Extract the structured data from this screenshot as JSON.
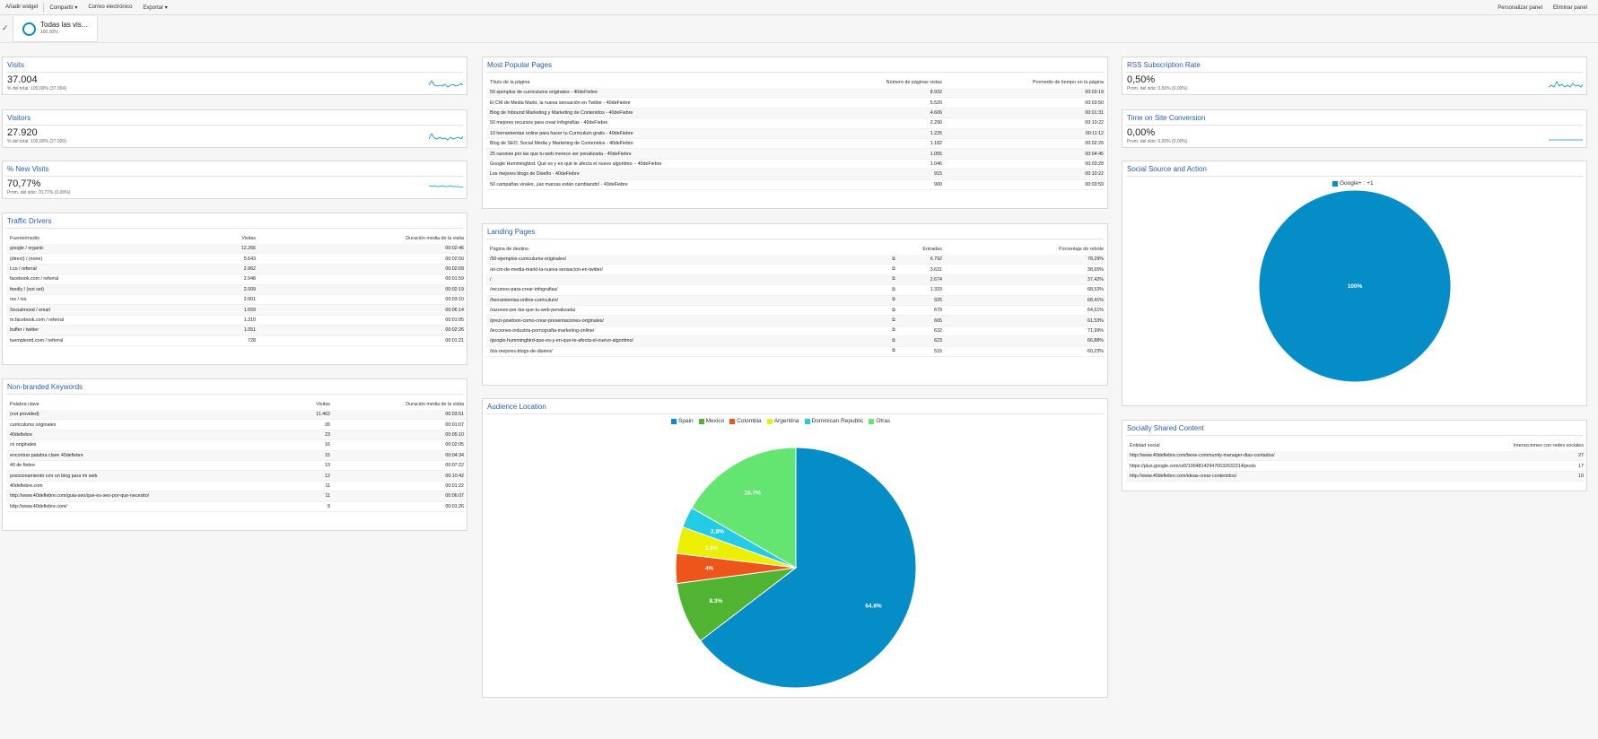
{
  "toolbar": {
    "add_widget": "Añadir widget",
    "share": "Compartir",
    "email": "Correo electrónico",
    "export": "Exportar",
    "customize": "Personalizar panel",
    "delete": "Eliminar panel"
  },
  "segment": {
    "name": "Todas las vis...",
    "pct": "100,00%"
  },
  "visits": {
    "title": "Visits",
    "value": "37.004",
    "sub": "% del total: 100,00% (37.004)"
  },
  "visitors": {
    "title": "Visitors",
    "value": "27.920",
    "sub": "% del total: 100,00% (27.920)"
  },
  "new_visits": {
    "title": "% New Visits",
    "value": "70,77%",
    "sub": "Prom. del sitio: 70,77% (0,00%)"
  },
  "rss": {
    "title": "RSS Subscription Rate",
    "value": "0,50%",
    "sub": "Prom. del sitio: 0,50% (0,00%)"
  },
  "time_conv": {
    "title": "Time on Site Conversion",
    "value": "0,00%",
    "sub": "Prom. del sitio: 0,00% (0,00%)"
  },
  "traffic": {
    "title": "Traffic Drivers",
    "headers": [
      "Fuente/medio",
      "Visitas",
      "Duración media de la visita"
    ],
    "rows": [
      [
        "google / organic",
        "12.266",
        "00:02:46"
      ],
      [
        "(direct) / (none)",
        "5.643",
        "00:02:50"
      ],
      [
        "t.co / referral",
        "2.962",
        "00:02:09"
      ],
      [
        "facebook.com / referral",
        "2.948",
        "00:01:59"
      ],
      [
        "feedly / (not set)",
        "2.009",
        "00:02:19"
      ],
      [
        "rss / rss",
        "2.001",
        "00:03:10"
      ],
      [
        "Socialmood / email",
        "1.559",
        "00:06:14"
      ],
      [
        "m.facebook.com / referral",
        "1.310",
        "00:01:05"
      ],
      [
        "buffer / twitter",
        "1.051",
        "00:02:26"
      ],
      [
        "tuempleord.com / referral",
        "728",
        "00:01:21"
      ]
    ]
  },
  "keywords": {
    "title": "Non-branded Keywords",
    "headers": [
      "Palabra clave",
      "Visitas",
      "Duración media de la visita"
    ],
    "rows": [
      [
        "(not provided)",
        "11.462",
        "00:03:51"
      ],
      [
        "curriculums originales",
        "26",
        "00:01:07"
      ],
      [
        "40defiebre",
        "23",
        "00:05:10"
      ],
      [
        "cv originales",
        "16",
        "00:02:05"
      ],
      [
        "encontrar palabra clave 40defiebre",
        "15",
        "00:04:34"
      ],
      [
        "40 de fiebre",
        "13",
        "00:07:22"
      ],
      [
        "posicionamiento con un blog para mi web",
        "12",
        "00:10:42"
      ],
      [
        "40defiebre.com",
        "11",
        "00:01:22"
      ],
      [
        "http://www.40defiebre.com/guia-seo/que-es-seo-por-que-necesito/",
        "11",
        "00:06:07"
      ],
      [
        "http://www.40defiebre.com/",
        "9",
        "00:01:26"
      ]
    ]
  },
  "popular": {
    "title": "Most Popular Pages",
    "headers": [
      "Título de la página",
      "Número de páginas vistas",
      "Promedio de tiempo en la página"
    ],
    "rows": [
      [
        "50 ejemplos de curriculums originales - 40deFiebre",
        "8.932",
        "00:03:19"
      ],
      [
        "El CM de Media Markt, la nueva sensación en Twitter - 40deFiebre",
        "5.520",
        "00:03:50"
      ],
      [
        "Blog de Inbound Marketing y Marketing de Contenidos - 40deFiebre",
        "4.606",
        "00:01:31"
      ],
      [
        "50 mejores recursos para crear infografías - 40deFiebre",
        "2.290",
        "00:10:22"
      ],
      [
        "10 herramientas online para hacer tu Curriculum gratis - 40deFiebre",
        "1.225",
        "00:11:12"
      ],
      [
        "Blog de SEO, Social Media y Marketing de Contenidos - 40deFiebre",
        "1.182",
        "00:02:29"
      ],
      [
        "25 razones por las que tu web merece ser penalizada - 40deFiebre",
        "1.055",
        "00:04:45"
      ],
      [
        "Google Hummingbird. Qué es y en qué te afecta el nuevo algoritmo. - 40deFiebre",
        "1.046",
        "00:03:28"
      ],
      [
        "Los mejores blogs de Diseño - 40deFiebre",
        "915",
        "00:10:22"
      ],
      [
        "50 campañas virales, ¡las marcas están cambiando! - 40deFiebre",
        "900",
        "00:03:59"
      ]
    ]
  },
  "landing": {
    "title": "Landing Pages",
    "headers": [
      "Página de destino",
      "Entradas",
      "Porcentaje de rebote"
    ],
    "rows": [
      [
        "/50-ejemplos-curriculums-originales/",
        "6.792",
        "78,29%"
      ],
      [
        "/el-cm-de-media-markt-la-nueva-sensacion-en-twitter/",
        "3.631",
        "38,65%"
      ],
      [
        "/",
        "2.674",
        "37,42%"
      ],
      [
        "/recursos-para-crear-infografias/",
        "1.333",
        "68,53%"
      ],
      [
        "/herramientas-online-curriculum/",
        "925",
        "68,41%"
      ],
      [
        "/razones-por-las-que-tu-web-penalizada/",
        "679",
        "64,51%"
      ],
      [
        "/prezi-powtoon-como-crear-presentaciones-originales/",
        "665",
        "61,53%"
      ],
      [
        "/lecciones-industria-pornografia-marketing-online/",
        "632",
        "71,99%"
      ],
      [
        "/google-hummingbird-que-es-y-en-que-te-afecta-el-nuevo-algoritmo/",
        "623",
        "66,88%"
      ],
      [
        "/los-mejores-blogs-de-diseno/",
        "515",
        "60,23%"
      ]
    ]
  },
  "shared": {
    "title": "Socially Shared Content",
    "headers": [
      "Entidad social",
      "Interacciones con redes sociales"
    ],
    "rows": [
      [
        "http://www.40defiebre.com/tiene-community-manager-dias-contados/",
        "27"
      ],
      [
        "https://plus.google.com/u/0/100481429476632632314/posts",
        "17"
      ],
      [
        "http://www.40defiebre.com/ideas-crear-contenidos/",
        "10"
      ]
    ]
  },
  "chart_data": [
    {
      "type": "pie",
      "title": "Audience Location",
      "categories": [
        "Spain",
        "Mexico",
        "Colombia",
        "Argentina",
        "Dominican Republic",
        "Otras"
      ],
      "values": [
        64.6,
        8.3,
        4.0,
        3.6,
        2.8,
        16.7
      ],
      "labels": [
        "64.6%",
        "8.3%",
        "4%",
        "3.6%",
        "2.8%",
        "16.7%"
      ],
      "colors": [
        "#058dc7",
        "#50b432",
        "#ed561b",
        "#edef00",
        "#24cbe5",
        "#64e572"
      ],
      "legend": "top"
    },
    {
      "type": "pie",
      "title": "Social Source and Action",
      "categories": [
        "Google+ : +1"
      ],
      "values": [
        100
      ],
      "labels": [
        "100%"
      ],
      "colors": [
        "#058dc7"
      ],
      "legend": "top"
    }
  ]
}
